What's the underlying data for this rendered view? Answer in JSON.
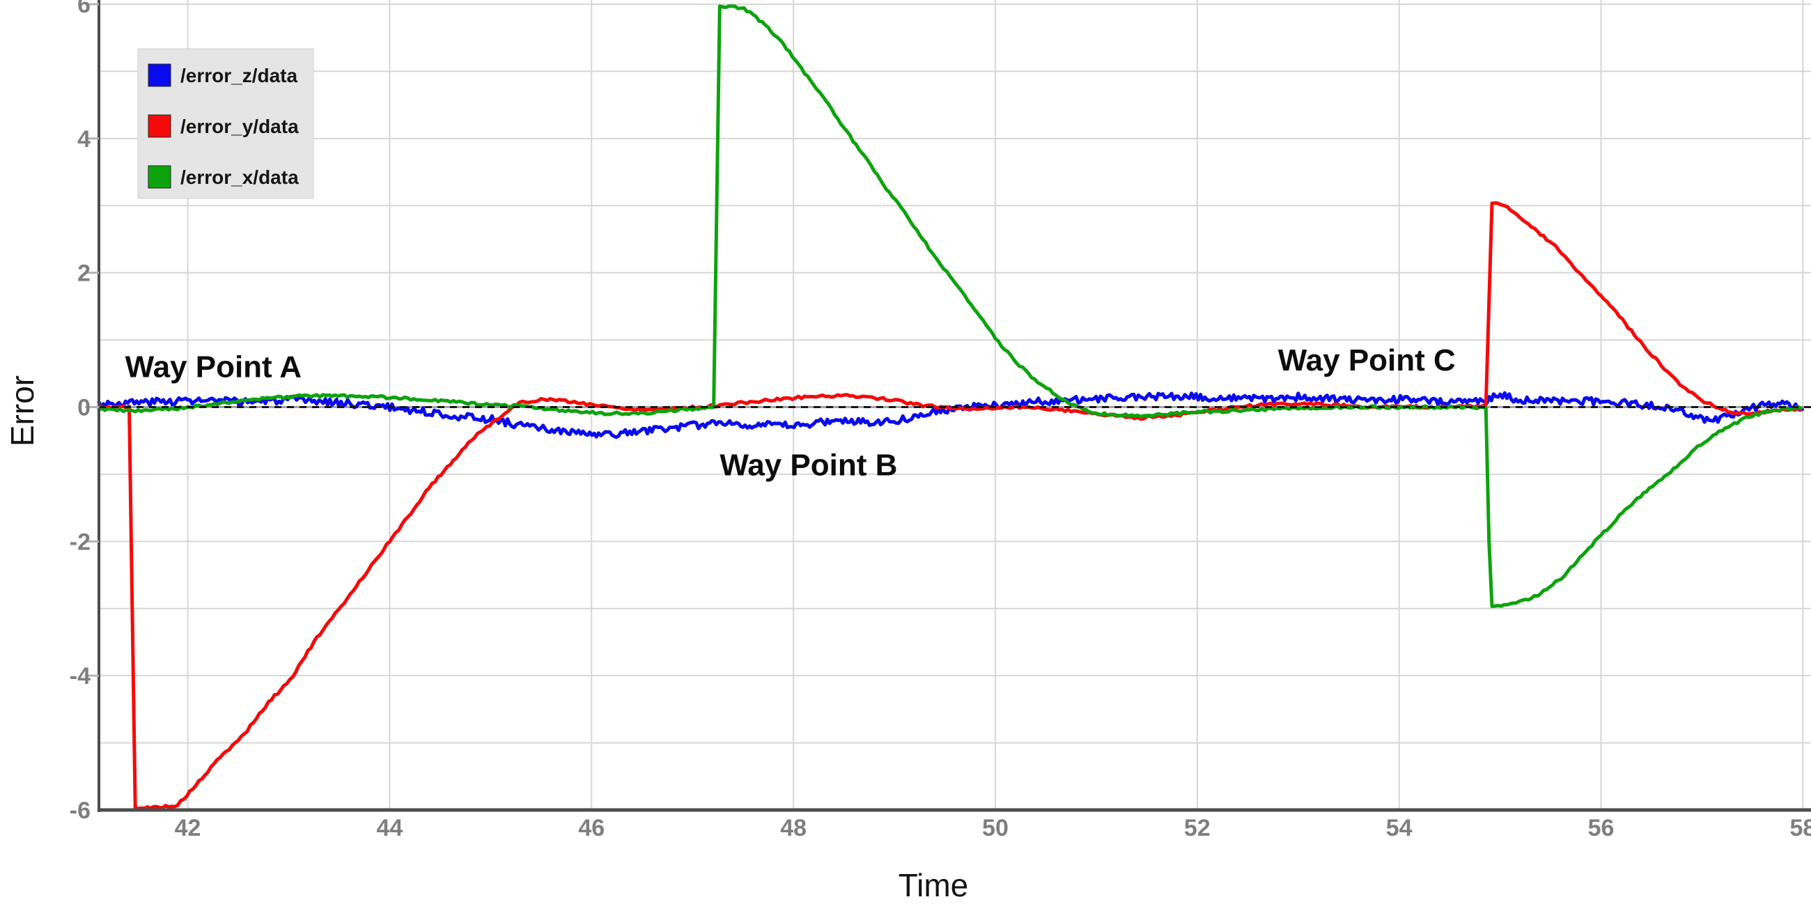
{
  "chart_data": {
    "type": "line",
    "title": "",
    "xlabel": "Time",
    "ylabel": "Error",
    "xlim": [
      41.12,
      58.08
    ],
    "ylim": [
      -6,
      6
    ],
    "x_ticks": [
      42,
      44,
      46,
      48,
      50,
      52,
      54,
      56,
      58
    ],
    "y_ticks": [
      6,
      4,
      2,
      0,
      -2,
      -4,
      -6
    ],
    "grid": {
      "vertical_step": 2,
      "horizontal_step": 1,
      "grid_color": "#d6d6d6",
      "zero_line_color": "#a2a2a2",
      "zero_dash_color": "#161616",
      "axis_color": "#4d4d4d"
    },
    "legend": {
      "position": "top-left",
      "bg": "#e5e5e5",
      "border": "#d2d2d2",
      "items": [
        {
          "label": "/error_z/data",
          "color": "#0a0af0"
        },
        {
          "label": "/error_y/data",
          "color": "#f50a0a"
        },
        {
          "label": "/error_x/data",
          "color": "#0da30d"
        }
      ]
    },
    "annotations": [
      {
        "text": "Way Point A",
        "t": 41.38,
        "value": 0.61
      },
      {
        "text": "Way Point B",
        "t": 47.27,
        "value": -0.85
      },
      {
        "text": "Way Point C",
        "t": 52.8,
        "value": 0.71
      }
    ],
    "series": [
      {
        "name": "/error_z/data",
        "color": "#0a0af0",
        "width": 5,
        "noise": {
          "amp": 0.055,
          "step": 0.022,
          "seed": 3
        },
        "points": [
          [
            41.12,
            0.05
          ],
          [
            41.5,
            0.07
          ],
          [
            42.0,
            0.1
          ],
          [
            42.5,
            0.08
          ],
          [
            43.0,
            0.1
          ],
          [
            43.4,
            0.08
          ],
          [
            43.8,
            0.03
          ],
          [
            44.1,
            -0.02
          ],
          [
            44.4,
            -0.08
          ],
          [
            44.7,
            -0.14
          ],
          [
            45.0,
            -0.18
          ],
          [
            45.4,
            -0.3
          ],
          [
            45.8,
            -0.38
          ],
          [
            46.1,
            -0.42
          ],
          [
            46.4,
            -0.38
          ],
          [
            46.7,
            -0.32
          ],
          [
            47.0,
            -0.28
          ],
          [
            47.3,
            -0.22
          ],
          [
            47.6,
            -0.27
          ],
          [
            48.0,
            -0.28
          ],
          [
            48.4,
            -0.2
          ],
          [
            48.8,
            -0.22
          ],
          [
            49.1,
            -0.18
          ],
          [
            49.35,
            -0.06
          ],
          [
            49.6,
            -0.03
          ],
          [
            49.9,
            0.02
          ],
          [
            50.2,
            0.05
          ],
          [
            50.6,
            0.1
          ],
          [
            51.0,
            0.12
          ],
          [
            51.5,
            0.16
          ],
          [
            52.0,
            0.15
          ],
          [
            52.5,
            0.12
          ],
          [
            53.0,
            0.15
          ],
          [
            53.5,
            0.1
          ],
          [
            54.0,
            0.12
          ],
          [
            54.5,
            0.08
          ],
          [
            54.85,
            0.1
          ],
          [
            55.0,
            0.2
          ],
          [
            55.15,
            0.1
          ],
          [
            55.6,
            0.1
          ],
          [
            56.0,
            0.08
          ],
          [
            56.4,
            0.04
          ],
          [
            56.7,
            -0.03
          ],
          [
            56.9,
            -0.12
          ],
          [
            57.1,
            -0.2
          ],
          [
            57.3,
            -0.12
          ],
          [
            57.5,
            0.0
          ],
          [
            57.75,
            0.04
          ],
          [
            58.0,
            0.0
          ]
        ]
      },
      {
        "name": "/error_y/data",
        "color": "#f50a0a",
        "width": 5,
        "noise": {
          "amp": 0.02,
          "step": 0.03,
          "seed": 5
        },
        "points": [
          [
            41.12,
            0.0
          ],
          [
            41.44,
            0.0
          ],
          [
            41.46,
            -5.97
          ],
          [
            41.6,
            -5.97
          ],
          [
            41.9,
            -5.93
          ],
          [
            42.1,
            -5.6
          ],
          [
            42.3,
            -5.25
          ],
          [
            42.56,
            -4.87
          ],
          [
            42.8,
            -4.4
          ],
          [
            43.02,
            -4.05
          ],
          [
            43.25,
            -3.5
          ],
          [
            43.48,
            -3.05
          ],
          [
            43.7,
            -2.6
          ],
          [
            43.94,
            -2.12
          ],
          [
            44.2,
            -1.6
          ],
          [
            44.4,
            -1.18
          ],
          [
            44.6,
            -0.85
          ],
          [
            44.8,
            -0.5
          ],
          [
            45.0,
            -0.25
          ],
          [
            45.15,
            -0.08
          ],
          [
            45.3,
            0.07
          ],
          [
            45.55,
            0.12
          ],
          [
            45.9,
            0.06
          ],
          [
            46.2,
            0.0
          ],
          [
            46.5,
            -0.04
          ],
          [
            46.8,
            -0.02
          ],
          [
            47.1,
            0.0
          ],
          [
            47.4,
            0.05
          ],
          [
            47.75,
            0.1
          ],
          [
            48.1,
            0.15
          ],
          [
            48.4,
            0.17
          ],
          [
            48.7,
            0.16
          ],
          [
            49.0,
            0.1
          ],
          [
            49.3,
            0.02
          ],
          [
            49.6,
            -0.02
          ],
          [
            49.9,
            -0.02
          ],
          [
            50.2,
            0.0
          ],
          [
            50.5,
            -0.02
          ],
          [
            50.8,
            -0.06
          ],
          [
            51.1,
            -0.12
          ],
          [
            51.45,
            -0.16
          ],
          [
            51.8,
            -0.12
          ],
          [
            52.1,
            -0.06
          ],
          [
            52.4,
            0.0
          ],
          [
            52.7,
            0.04
          ],
          [
            53.1,
            0.05
          ],
          [
            53.5,
            0.02
          ],
          [
            53.9,
            0.0
          ],
          [
            54.3,
            0.0
          ],
          [
            54.7,
            0.01
          ],
          [
            54.88,
            0.02
          ],
          [
            54.9,
            3.05
          ],
          [
            55.05,
            3.0
          ],
          [
            55.2,
            2.82
          ],
          [
            55.4,
            2.58
          ],
          [
            55.6,
            2.32
          ],
          [
            55.78,
            2.0
          ],
          [
            56.0,
            1.65
          ],
          [
            56.2,
            1.32
          ],
          [
            56.37,
            1.0
          ],
          [
            56.6,
            0.62
          ],
          [
            56.8,
            0.32
          ],
          [
            57.0,
            0.1
          ],
          [
            57.15,
            0.0
          ],
          [
            57.3,
            -0.08
          ],
          [
            57.5,
            -0.1
          ],
          [
            57.7,
            -0.05
          ],
          [
            58.0,
            -0.02
          ]
        ]
      },
      {
        "name": "/error_x/data",
        "color": "#0da30d",
        "width": 5,
        "noise": {
          "amp": 0.02,
          "step": 0.03,
          "seed": 9
        },
        "points": [
          [
            41.12,
            -0.03
          ],
          [
            41.5,
            -0.06
          ],
          [
            41.9,
            -0.02
          ],
          [
            42.3,
            0.05
          ],
          [
            42.7,
            0.12
          ],
          [
            43.1,
            0.16
          ],
          [
            43.5,
            0.17
          ],
          [
            43.9,
            0.15
          ],
          [
            44.3,
            0.12
          ],
          [
            44.6,
            0.08
          ],
          [
            44.9,
            0.04
          ],
          [
            45.2,
            0.02
          ],
          [
            45.5,
            -0.02
          ],
          [
            45.8,
            -0.06
          ],
          [
            46.1,
            -0.09
          ],
          [
            46.45,
            -0.1
          ],
          [
            46.75,
            -0.06
          ],
          [
            47.05,
            -0.02
          ],
          [
            47.22,
            0.0
          ],
          [
            47.26,
            5.97
          ],
          [
            47.5,
            5.95
          ],
          [
            47.65,
            5.78
          ],
          [
            47.85,
            5.5
          ],
          [
            48.05,
            5.1
          ],
          [
            48.3,
            4.6
          ],
          [
            48.6,
            3.95
          ],
          [
            48.9,
            3.3
          ],
          [
            49.1,
            2.9
          ],
          [
            49.35,
            2.35
          ],
          [
            49.6,
            1.85
          ],
          [
            49.8,
            1.45
          ],
          [
            50.0,
            1.02
          ],
          [
            50.2,
            0.68
          ],
          [
            50.4,
            0.4
          ],
          [
            50.6,
            0.18
          ],
          [
            50.78,
            0.02
          ],
          [
            50.95,
            -0.08
          ],
          [
            51.15,
            -0.12
          ],
          [
            51.45,
            -0.13
          ],
          [
            51.75,
            -0.1
          ],
          [
            52.05,
            -0.07
          ],
          [
            52.45,
            -0.05
          ],
          [
            52.85,
            -0.03
          ],
          [
            53.25,
            -0.01
          ],
          [
            53.7,
            0.0
          ],
          [
            54.2,
            0.0
          ],
          [
            54.6,
            0.0
          ],
          [
            54.87,
            -0.02
          ],
          [
            54.9,
            -2.97
          ],
          [
            55.15,
            -2.93
          ],
          [
            55.35,
            -2.82
          ],
          [
            55.6,
            -2.56
          ],
          [
            55.94,
            -2.0
          ],
          [
            56.2,
            -1.6
          ],
          [
            56.45,
            -1.25
          ],
          [
            56.72,
            -0.92
          ],
          [
            56.95,
            -0.6
          ],
          [
            57.2,
            -0.34
          ],
          [
            57.45,
            -0.15
          ],
          [
            57.7,
            -0.05
          ],
          [
            58.0,
            0.0
          ]
        ]
      }
    ]
  }
}
